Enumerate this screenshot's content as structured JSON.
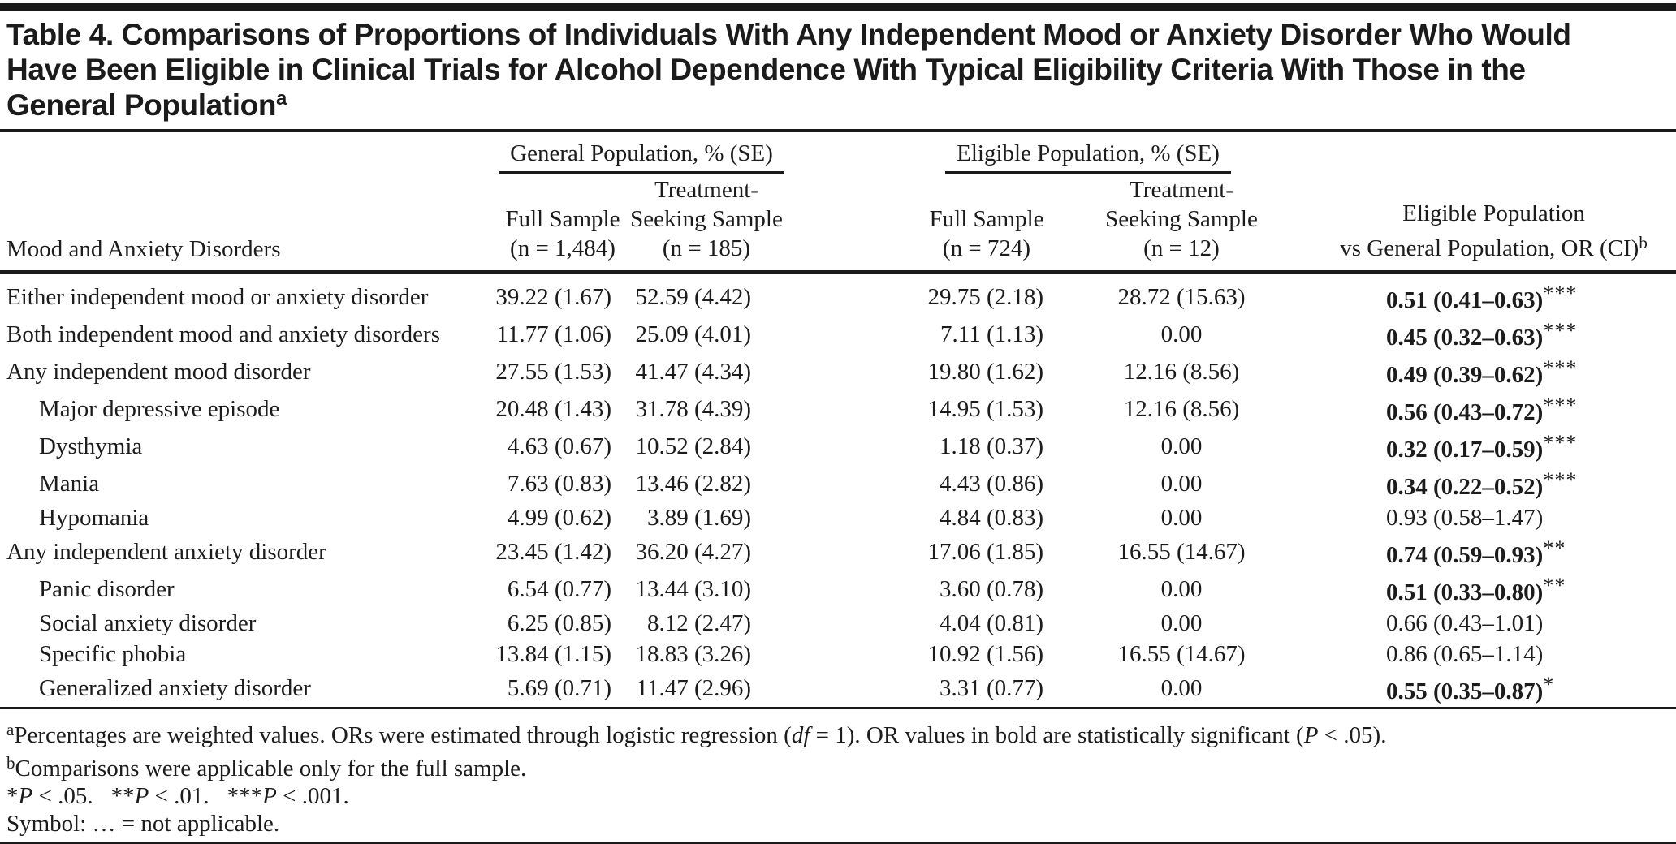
{
  "title": {
    "text": "Table 4. Comparisons of Proportions of Individuals With Any Independent Mood or Anxiety Disorder Who Would Have Been Eligible in Clinical Trials for Alcohol Dependence With Typical Eligibility Criteria With Those in the General Population",
    "superscript": "a"
  },
  "table": {
    "stub_header": "Mood and Anxiety Disorders",
    "spanners": {
      "general": "General Population, % (SE)",
      "eligible": "Eligible Population, % (SE)"
    },
    "columns": {
      "gp_full": {
        "line1": "Full Sample",
        "line2": "(n = 1,484)"
      },
      "gp_ts": {
        "line1": "Treatment-",
        "line2": "Seeking Sample",
        "line3": "(n = 185)"
      },
      "ep_full": {
        "line1": "Full Sample",
        "line2": "(n = 724)"
      },
      "ep_ts": {
        "line1": "Treatment-",
        "line2": "Seeking Sample",
        "line3": "(n = 12)"
      },
      "or": {
        "line1": "Eligible Population",
        "line2": "vs General Population, OR (CI)",
        "superscript": "b"
      }
    },
    "rows": [
      {
        "label": "Either independent mood or anxiety disorder",
        "indent": false,
        "gp_full": "39.22 (1.67)",
        "gp_ts": "52.59 (4.42)",
        "ep_full": "29.75 (2.18)",
        "ep_ts": "28.72 (15.63)",
        "or": "0.51 (0.41–0.63)",
        "or_bold": true,
        "stars": "***"
      },
      {
        "label": "Both independent mood and anxiety disorders",
        "indent": false,
        "gp_full": "11.77 (1.06)",
        "gp_ts": "25.09 (4.01)",
        "ep_full": "7.11 (1.13)",
        "ep_ts": "0.00",
        "or": "0.45 (0.32–0.63)",
        "or_bold": true,
        "stars": "***"
      },
      {
        "label": "Any independent mood disorder",
        "indent": false,
        "gp_full": "27.55 (1.53)",
        "gp_ts": "41.47 (4.34)",
        "ep_full": "19.80 (1.62)",
        "ep_ts": "12.16 (8.56)",
        "or": "0.49 (0.39–0.62)",
        "or_bold": true,
        "stars": "***"
      },
      {
        "label": "Major depressive episode",
        "indent": true,
        "gp_full": "20.48 (1.43)",
        "gp_ts": "31.78 (4.39)",
        "ep_full": "14.95 (1.53)",
        "ep_ts": "12.16 (8.56)",
        "or": "0.56 (0.43–0.72)",
        "or_bold": true,
        "stars": "***"
      },
      {
        "label": "Dysthymia",
        "indent": true,
        "gp_full": "4.63 (0.67)",
        "gp_ts": "10.52 (2.84)",
        "ep_full": "1.18 (0.37)",
        "ep_ts": "0.00",
        "or": "0.32 (0.17–0.59)",
        "or_bold": true,
        "stars": "***"
      },
      {
        "label": "Mania",
        "indent": true,
        "gp_full": "7.63 (0.83)",
        "gp_ts": "13.46 (2.82)",
        "ep_full": "4.43 (0.86)",
        "ep_ts": "0.00",
        "or": "0.34 (0.22–0.52)",
        "or_bold": true,
        "stars": "***"
      },
      {
        "label": "Hypomania",
        "indent": true,
        "gp_full": "4.99 (0.62)",
        "gp_ts": "3.89 (1.69)",
        "ep_full": "4.84 (0.83)",
        "ep_ts": "0.00",
        "or": "0.93 (0.58–1.47)",
        "or_bold": false,
        "stars": ""
      },
      {
        "label": "Any independent anxiety disorder",
        "indent": false,
        "gp_full": "23.45 (1.42)",
        "gp_ts": "36.20 (4.27)",
        "ep_full": "17.06 (1.85)",
        "ep_ts": "16.55 (14.67)",
        "or": "0.74 (0.59–0.93)",
        "or_bold": true,
        "stars": "**"
      },
      {
        "label": "Panic disorder",
        "indent": true,
        "gp_full": "6.54 (0.77)",
        "gp_ts": "13.44 (3.10)",
        "ep_full": "3.60 (0.78)",
        "ep_ts": "0.00",
        "or": "0.51 (0.33–0.80)",
        "or_bold": true,
        "stars": "**"
      },
      {
        "label": "Social anxiety disorder",
        "indent": true,
        "gp_full": "6.25 (0.85)",
        "gp_ts": "8.12 (2.47)",
        "ep_full": "4.04 (0.81)",
        "ep_ts": "0.00",
        "or": "0.66 (0.43–1.01)",
        "or_bold": false,
        "stars": ""
      },
      {
        "label": "Specific phobia",
        "indent": true,
        "gp_full": "13.84 (1.15)",
        "gp_ts": "18.83 (3.26)",
        "ep_full": "10.92 (1.56)",
        "ep_ts": "16.55 (14.67)",
        "or": "0.86 (0.65–1.14)",
        "or_bold": false,
        "stars": ""
      },
      {
        "label": "Generalized anxiety disorder",
        "indent": true,
        "gp_full": "5.69 (0.71)",
        "gp_ts": "11.47 (2.96)",
        "ep_full": "3.31 (0.77)",
        "ep_ts": "0.00",
        "or": "0.55 (0.35–0.87)",
        "or_bold": true,
        "stars": "*"
      }
    ]
  },
  "footnotes": {
    "a": {
      "sup": "a",
      "seg1": "Percentages are weighted values. ORs were estimated through logistic regression (",
      "italic1": "df",
      "seg2": " = 1). OR values in bold are statistically significant (",
      "italic2": "P",
      "seg3": " < .05)."
    },
    "b": {
      "sup": "b",
      "text": "Comparisons were applicable only for the full sample."
    },
    "significance": {
      "star1": "*",
      "p1": "P",
      "t1": " < .05.",
      "star2": "**",
      "p2": "P",
      "t2": " < .01.",
      "star3": "***",
      "p3": "P",
      "t3": " < .001."
    },
    "symbol": "Symbol: … = not applicable."
  }
}
